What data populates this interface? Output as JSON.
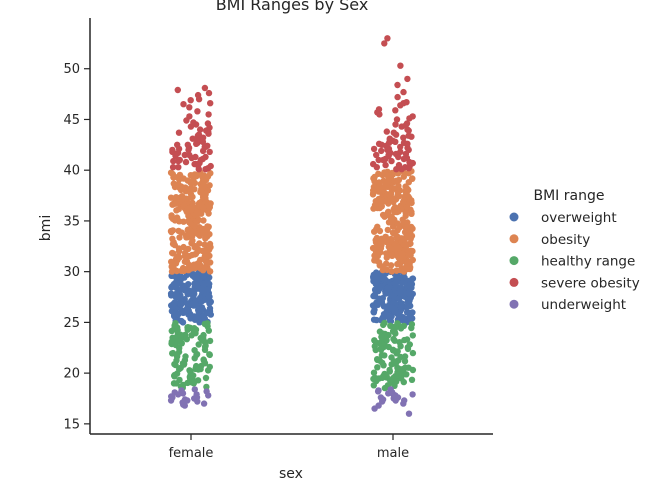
{
  "chart_data": {
    "type": "scatter",
    "subtype": "strip",
    "title": "BMI Ranges by Sex",
    "xlabel": "sex",
    "ylabel": "bmi",
    "categories": [
      "female",
      "male"
    ],
    "ylim": [
      14,
      55
    ],
    "yticks": [
      15,
      20,
      25,
      30,
      35,
      40,
      45,
      50
    ],
    "grid": false,
    "legend": {
      "title": "BMI range",
      "placement": "right",
      "entries": [
        {
          "name": "overweight",
          "color": "#4C72B0"
        },
        {
          "name": "obesity",
          "color": "#DD8452"
        },
        {
          "name": "healthy range",
          "color": "#55A868"
        },
        {
          "name": "severe obesity",
          "color": "#C44E52"
        },
        {
          "name": "underweight",
          "color": "#8172B3"
        }
      ]
    },
    "series": [
      {
        "name": "overweight",
        "range": [
          25,
          30
        ],
        "counts": {
          "female": 190,
          "male": 195
        },
        "color": "#4C72B0"
      },
      {
        "name": "obesity",
        "range": [
          30,
          39.9
        ],
        "counts": {
          "female": 270,
          "male": 275
        },
        "color": "#DD8452"
      },
      {
        "name": "healthy range",
        "range": [
          18.5,
          25
        ],
        "counts": {
          "female": 110,
          "male": 105
        },
        "color": "#55A868"
      },
      {
        "name": "severe obesity",
        "counts": {
          "female": 70,
          "male": 72
        },
        "values": {
          "female": [
            40.1,
            40.3,
            40.5,
            40.7,
            40.8,
            41.0,
            41.1,
            41.3,
            41.5,
            41.7,
            41.9,
            42.1,
            42.3,
            42.5,
            42.7,
            42.9,
            43.2,
            43.5,
            43.8,
            44.0,
            44.3,
            44.7,
            45.3,
            45.8,
            46.2,
            46.6,
            47.0,
            47.4,
            47.9,
            48.1,
            40.2,
            40.4,
            40.6,
            40.9,
            41.2,
            41.4,
            41.6,
            41.8,
            42.0,
            42.2,
            42.4,
            42.6,
            42.8,
            43.0,
            43.4,
            43.9,
            44.6,
            45.5,
            46.5,
            46.9,
            40.3,
            40.6,
            41.0,
            41.5,
            42.0,
            42.5,
            43.1,
            43.7,
            44.2,
            44.9,
            40.1,
            40.5,
            40.9,
            41.3,
            41.8,
            42.3,
            42.9,
            43.6,
            44.5,
            47.6
          ],
          "male": [
            40.1,
            40.3,
            40.5,
            40.7,
            40.9,
            41.1,
            41.3,
            41.5,
            41.7,
            41.9,
            42.1,
            42.3,
            42.5,
            42.7,
            42.9,
            43.1,
            43.4,
            43.7,
            44.0,
            44.3,
            44.6,
            45.0,
            45.3,
            45.7,
            46.0,
            46.4,
            46.6,
            47.2,
            47.7,
            48.4,
            49.0,
            50.3,
            52.5,
            53.0,
            40.2,
            40.4,
            40.6,
            40.8,
            41.0,
            41.2,
            41.4,
            41.6,
            41.8,
            42.0,
            42.2,
            42.4,
            42.6,
            42.8,
            43.0,
            43.3,
            43.9,
            44.5,
            45.1,
            45.9,
            46.7,
            40.3,
            40.7,
            41.1,
            41.6,
            42.1,
            42.6,
            43.2,
            43.8,
            44.4,
            45.5,
            40.1,
            40.5,
            41.0,
            41.5,
            42.0,
            42.7,
            43.5
          ]
        },
        "color": "#C44E52"
      },
      {
        "name": "underweight",
        "counts": {
          "female": 20,
          "male": 20
        },
        "values": {
          "female": [
            18.3,
            18.2,
            18.0,
            17.9,
            17.8,
            17.7,
            17.6,
            17.5,
            17.4,
            17.3,
            17.2,
            17.0,
            16.9,
            16.8,
            18.4,
            18.1,
            17.9,
            17.6,
            17.3,
            17.1
          ],
          "male": [
            18.4,
            18.3,
            18.1,
            18.0,
            17.9,
            17.8,
            17.7,
            17.6,
            17.5,
            17.4,
            17.3,
            17.2,
            17.0,
            16.8,
            16.5,
            16.0,
            18.2,
            17.9,
            17.6,
            17.3
          ]
        },
        "color": "#8172B3"
      }
    ]
  }
}
